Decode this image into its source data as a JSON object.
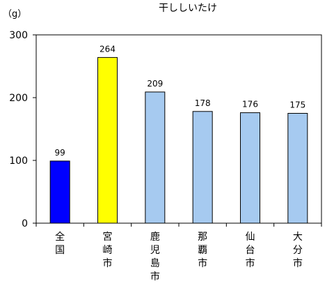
{
  "chart_data": {
    "type": "bar",
    "title": "干ししいたけ",
    "unit_label": "（g）",
    "categories": [
      "全国",
      "宮崎市",
      "鹿児島市",
      "那覇市",
      "仙台市",
      "大分市"
    ],
    "values": [
      99,
      264,
      209,
      178,
      176,
      175
    ],
    "bar_colors": [
      "#0000ff",
      "#ffff00",
      "#a6caf0",
      "#a6caf0",
      "#a6caf0",
      "#a6caf0"
    ],
    "ylim": [
      0,
      300
    ],
    "yticks": [
      0,
      100,
      200,
      300
    ],
    "xlabel": "",
    "ylabel": "",
    "grid": false,
    "legend": "none"
  }
}
